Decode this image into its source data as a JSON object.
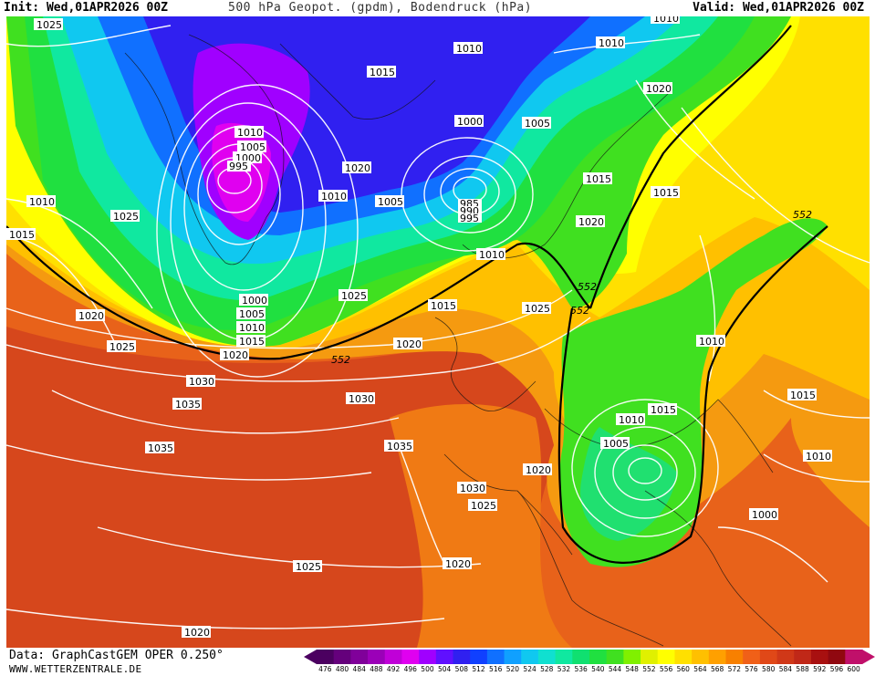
{
  "header": {
    "init": "Init: Wed,01APR2026 00Z",
    "title": "500 hPa Geopot. (gpdm), Bodendruck (hPa)",
    "valid": "Valid: Wed,01APR2026 00Z"
  },
  "footer": {
    "data_source": "Data: GraphCastGEM OPER 0.250°",
    "website": "WWW.WETTERZENTRALE.DE"
  },
  "legend": {
    "values": [
      "476",
      "480",
      "484",
      "488",
      "492",
      "496",
      "500",
      "504",
      "508",
      "512",
      "516",
      "520",
      "524",
      "528",
      "532",
      "536",
      "540",
      "544",
      "548",
      "552",
      "556",
      "560",
      "564",
      "568",
      "572",
      "576",
      "580",
      "584",
      "588",
      "592",
      "596",
      "600"
    ],
    "colors": [
      "#4b0060",
      "#65007c",
      "#80009a",
      "#9b00b8",
      "#c000d8",
      "#e000f0",
      "#a000ff",
      "#6010ff",
      "#3020f0",
      "#1040ff",
      "#1070ff",
      "#10a0ff",
      "#10c8f0",
      "#10e0d0",
      "#10e8a0",
      "#10e070",
      "#20e040",
      "#40e020",
      "#80f000",
      "#e0f000",
      "#ffff00",
      "#ffe000",
      "#ffc000",
      "#ffa000",
      "#f88000",
      "#f06018",
      "#e04818",
      "#d03818",
      "#c02818",
      "#a81010",
      "#900810",
      "#c0106a"
    ]
  },
  "isobar_labels": [
    "1025",
    "1010",
    "1015",
    "1005",
    "1000",
    "995",
    "1020",
    "1030",
    "1035"
  ],
  "geopotential_label": "552",
  "map_labels": [
    {
      "text": "1025",
      "zone": "nw-corner"
    },
    {
      "text": "1010",
      "zone": "greenland-west"
    },
    {
      "text": "1015",
      "zone": "west-edge"
    },
    {
      "text": "1025",
      "zone": "iceland-low-west"
    },
    {
      "text": "1010",
      "zone": "icelow-core-top"
    },
    {
      "text": "1005",
      "zone": "icelow-core"
    },
    {
      "text": "1000",
      "zone": "icelow-core"
    },
    {
      "text": "995",
      "zone": "icelow-core"
    },
    {
      "text": "1015",
      "zone": "greenland-east"
    },
    {
      "text": "1020",
      "zone": "greenland-high"
    },
    {
      "text": "1010",
      "zone": "greenland-south"
    },
    {
      "text": "1010",
      "zone": "norway-sea-north"
    },
    {
      "text": "1000",
      "zone": "norway-low"
    },
    {
      "text": "1005",
      "zone": "norway-sea"
    },
    {
      "text": "1005",
      "zone": "norway-low-west"
    },
    {
      "text": "985",
      "zone": "norway-low-core"
    },
    {
      "text": "990",
      "zone": "norway-low-core"
    },
    {
      "text": "995",
      "zone": "norway-low-core"
    },
    {
      "text": "1010",
      "zone": "arctic-top"
    },
    {
      "text": "1020",
      "zone": "scandinavia-east"
    },
    {
      "text": "1015",
      "zone": "scandinavia"
    },
    {
      "text": "1015",
      "zone": "russia"
    },
    {
      "text": "1020",
      "zone": "baltic"
    },
    {
      "text": "1010",
      "zone": "north-sea"
    },
    {
      "text": "1025",
      "zone": "atlantic-mid"
    },
    {
      "text": "1015",
      "zone": "uk-north"
    },
    {
      "text": "1025",
      "zone": "france-north"
    },
    {
      "text": "1020",
      "zone": "uk"
    },
    {
      "text": "1000",
      "zone": "atlantic-low-ring"
    },
    {
      "text": "1005",
      "zone": "atlantic-low-ring"
    },
    {
      "text": "1010",
      "zone": "atlantic-low-ring"
    },
    {
      "text": "1015",
      "zone": "atlantic-low-ring"
    },
    {
      "text": "1020",
      "zone": "atlantic-low-ring"
    },
    {
      "text": "1020",
      "zone": "west-atlantic"
    },
    {
      "text": "1025",
      "zone": "west-atlantic"
    },
    {
      "text": "1030",
      "zone": "azores"
    },
    {
      "text": "1035",
      "zone": "azores"
    },
    {
      "text": "1030",
      "zone": "biscay"
    },
    {
      "text": "1035",
      "zone": "azores-south"
    },
    {
      "text": "1035",
      "zone": "iberia-west"
    },
    {
      "text": "1030",
      "zone": "iberia"
    },
    {
      "text": "1025",
      "zone": "iberia"
    },
    {
      "text": "1020",
      "zone": "iberia-east"
    },
    {
      "text": "1020",
      "zone": "iberia-south"
    },
    {
      "text": "1025",
      "zone": "subtropical"
    },
    {
      "text": "1020",
      "zone": "subtropical-south"
    },
    {
      "text": "1010",
      "zone": "balkans-north"
    },
    {
      "text": "1015",
      "zone": "balkans"
    },
    {
      "text": "1010",
      "zone": "med-low"
    },
    {
      "text": "1005",
      "zone": "med-low"
    },
    {
      "text": "1015",
      "zone": "turkey"
    },
    {
      "text": "1010",
      "zone": "black-sea"
    },
    {
      "text": "1010",
      "zone": "middle-east"
    },
    {
      "text": "1000",
      "zone": "middle-east-south"
    },
    {
      "text": "552",
      "zone": "russia-trough"
    },
    {
      "text": "552",
      "zone": "scandinavia-trough"
    },
    {
      "text": "552",
      "zone": "north-sea-trough"
    },
    {
      "text": "552",
      "zone": "atlantic-ridge"
    }
  ]
}
